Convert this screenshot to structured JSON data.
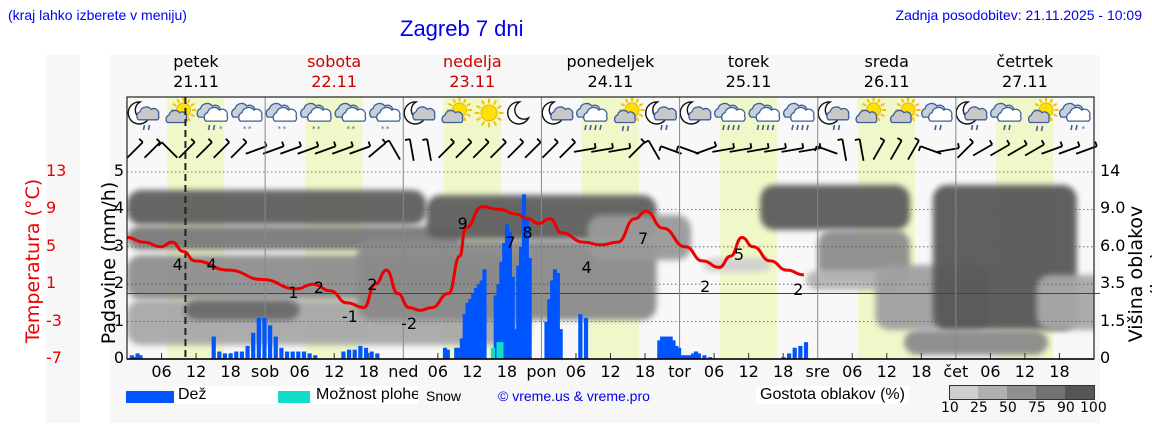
{
  "header": {
    "location_note": "(kraj lahko izberete v meniju)",
    "title": "Zagreb 7 dni",
    "last_update": "Zadnja posodobitev: 21.11.2025 - 10:09"
  },
  "days": [
    {
      "name": "petek",
      "date": "21.11",
      "weekend": false
    },
    {
      "name": "sobota",
      "date": "22.11",
      "weekend": true
    },
    {
      "name": "nedelja",
      "date": "23.11",
      "weekend": true
    },
    {
      "name": "ponedeljek",
      "date": "24.11",
      "weekend": false
    },
    {
      "name": "torek",
      "date": "25.11",
      "weekend": false
    },
    {
      "name": "sreda",
      "date": "26.11",
      "weekend": false
    },
    {
      "name": "četrtek",
      "date": "27.11",
      "weekend": false
    }
  ],
  "axes": {
    "temperature_title": "Temperatura (°C)",
    "precip_title": "Padavine (mm/h)",
    "cloud_title": "Višina oblakov (km)",
    "temperature_ticks": [
      "13",
      "9",
      "5",
      "1",
      "-3",
      "-7"
    ],
    "precip_ticks": [
      "5",
      "4",
      "3",
      "2",
      "1",
      "0"
    ],
    "cloud_ticks": [
      "14",
      "9.0",
      "6.0",
      "3.5",
      "1.5",
      "0"
    ]
  },
  "x_labels": [
    "06",
    "12",
    "18",
    "sob",
    "06",
    "12",
    "18",
    "ned",
    "06",
    "12",
    "18",
    "pon",
    "06",
    "12",
    "18",
    "tor",
    "06",
    "12",
    "18",
    "sre",
    "06",
    "12",
    "18",
    "čet",
    "06",
    "12",
    "18"
  ],
  "legend": {
    "rain_label": "Dež",
    "rain_color": "#0055ff",
    "shower_label": "Možnost plohe",
    "shower_color": "#11ddc8",
    "snow_label": "Snow",
    "copyright": "© vreme.us & vreme.pro",
    "density_title": "Gostota oblakov (%)",
    "density_ticks": [
      "10",
      "25",
      "50",
      "75",
      "90",
      "100"
    ],
    "density_colors": [
      "#cfcfcf",
      "#b0b0b0",
      "#8f8f8f",
      "#727272",
      "#555555"
    ]
  },
  "weather_icons": [
    "night-cloud-rain",
    "sun-cloud",
    "cloud-rain-snow",
    "cloud-snow",
    "cloud-snow",
    "cloud-snow",
    "cloud-snow",
    "cloud-snow",
    "night-cloud",
    "sun-cloud",
    "sun",
    "night",
    "night-cloud",
    "cloud-rain",
    "sun-cloud-rain",
    "night-cloud-rain",
    "night-cloud",
    "cloud-rain",
    "cloud-rain",
    "cloud-rain",
    "night-cloud-rain",
    "sun-cloud",
    "sun-cloud",
    "cloud-rain",
    "night-cloud-rain",
    "cloud-rain",
    "sun-cloud-rain",
    "cloud-rain-snow"
  ],
  "temperature_labels": [
    {
      "hour": 18,
      "value": "4"
    },
    {
      "hour": 30,
      "value": "4"
    },
    {
      "hour": 59,
      "value": "1"
    },
    {
      "hour": 68,
      "value": "2"
    },
    {
      "hour": 79,
      "value": "-1"
    },
    {
      "hour": 87,
      "value": "2"
    },
    {
      "hour": 100,
      "value": "-2"
    },
    {
      "hour": 119,
      "value": "9"
    },
    {
      "hour": 136,
      "value": "7"
    },
    {
      "hour": 142,
      "value": "8"
    },
    {
      "hour": 163,
      "value": "4"
    },
    {
      "hour": 183,
      "value": "7"
    },
    {
      "hour": 205,
      "value": "2"
    },
    {
      "hour": 217,
      "value": "5"
    },
    {
      "hour": 238,
      "value": "2"
    }
  ],
  "chart_data": {
    "type": "line+bar",
    "title": "Zagreb 7 dni",
    "xlabel": "",
    "x_ticks": [
      "06",
      "12",
      "18",
      "sob",
      "06",
      "12",
      "18",
      "ned",
      "06",
      "12",
      "18",
      "pon",
      "06",
      "12",
      "18",
      "tor",
      "06",
      "12",
      "18",
      "sre",
      "06",
      "12",
      "18",
      "čet",
      "06",
      "12",
      "18"
    ],
    "series": [
      {
        "name": "Temperatura (°C)",
        "type": "line",
        "color": "#ee0000",
        "x_hours": [
          0,
          6,
          12,
          16,
          20,
          24,
          36,
          48,
          60,
          66,
          72,
          78,
          84,
          88,
          92,
          96,
          100,
          104,
          108,
          114,
          118,
          120,
          126,
          132,
          138,
          142,
          146,
          150,
          154,
          162,
          168,
          174,
          180,
          184,
          190,
          198,
          204,
          210,
          214,
          218,
          222,
          228,
          234,
          240
        ],
        "values": [
          6,
          5.5,
          5,
          5.5,
          4.5,
          3.5,
          2.5,
          1.5,
          0.5,
          1,
          0.3,
          -1,
          -1.5,
          1,
          2.5,
          0,
          -1.5,
          -1.8,
          -1.5,
          0,
          4,
          7,
          9.3,
          9,
          8.5,
          8,
          7.5,
          8,
          6.5,
          5.5,
          5.2,
          5.5,
          8,
          8.8,
          7,
          5,
          3.5,
          2.8,
          4,
          6,
          5,
          3.5,
          2.5,
          2
        ]
      },
      {
        "name": "Dež (mm/h)",
        "type": "bar",
        "color": "#0055ff",
        "x_hours": [
          1,
          2,
          3,
          4,
          30,
          32,
          34,
          36,
          38,
          40,
          42,
          44,
          46,
          48,
          50,
          52,
          54,
          56,
          58,
          60,
          62,
          64,
          66,
          76,
          78,
          80,
          82,
          84,
          86,
          88,
          112,
          113,
          116,
          117,
          118,
          119,
          120,
          121,
          122,
          123,
          124,
          125,
          126,
          130,
          131,
          132,
          133,
          134,
          135,
          136,
          137,
          138,
          139,
          140,
          141,
          142,
          148,
          149,
          150,
          151,
          152,
          153,
          160,
          162,
          188,
          189,
          190,
          191,
          192,
          193,
          194,
          195,
          196,
          197,
          198,
          199,
          200,
          201,
          202,
          204,
          206,
          232,
          234,
          236,
          238,
          240
        ],
        "values": [
          0.1,
          0.05,
          0.15,
          0.1,
          0.6,
          0.2,
          0.15,
          0.15,
          0.2,
          0.2,
          0.35,
          0.7,
          1.1,
          1.1,
          0.9,
          0.6,
          0.3,
          0.2,
          0.2,
          0.2,
          0.2,
          0.15,
          0.1,
          0.2,
          0.25,
          0.25,
          0.35,
          0.3,
          0.2,
          0.15,
          0.3,
          0.25,
          0.3,
          0.3,
          0.55,
          1.2,
          1.5,
          1.6,
          1.75,
          1.9,
          2.0,
          2.1,
          2.4,
          1.7,
          2.0,
          2.6,
          3.1,
          3.6,
          3.4,
          2.2,
          0.8,
          2.5,
          3.0,
          4.4,
          3.8,
          2.7,
          1.0,
          1.6,
          2.1,
          2.4,
          2.3,
          0.8,
          1.2,
          1.1,
          0.5,
          0.6,
          0.6,
          0.6,
          0.6,
          0.5,
          0.35,
          0.3,
          0.1,
          0.1,
          0.1,
          0.1,
          0.15,
          0.2,
          0.15,
          0.1,
          0.05,
          0.05,
          0.15,
          0.3,
          0.35,
          0.45,
          0.5
        ]
      },
      {
        "name": "Možnost plohe",
        "type": "bar",
        "color": "#11ddc8",
        "x_hours": [
          129,
          131,
          132
        ],
        "values": [
          0.3,
          0.45,
          0.45
        ]
      }
    ],
    "y_left_precip": {
      "label": "Padavine (mm/h)",
      "range": [
        0,
        5
      ],
      "ticks": [
        0,
        1,
        2,
        3,
        4,
        5
      ]
    },
    "y_left_temp": {
      "label": "Temperatura (°C)",
      "range": [
        -7,
        13
      ],
      "ticks": [
        -7,
        -3,
        1,
        5,
        9,
        13
      ]
    },
    "y_right_cloud": {
      "label": "Višina oblakov (km)",
      "ticks": [
        0,
        1.5,
        3.5,
        6.0,
        9.0,
        14
      ]
    },
    "x_range_hours": [
      0,
      168
    ],
    "days": [
      "petek 21.11",
      "sobota 22.11",
      "nedelja 23.11",
      "ponedeljek 24.11",
      "torek 25.11",
      "sreda 26.11",
      "četrtek 27.11"
    ],
    "current_time_marker_hour": 10.15,
    "grid": true,
    "cloud_density_legend": {
      "title": "Gostota oblakov (%)",
      "levels": [
        10,
        25,
        50,
        75,
        90,
        100
      ]
    }
  }
}
